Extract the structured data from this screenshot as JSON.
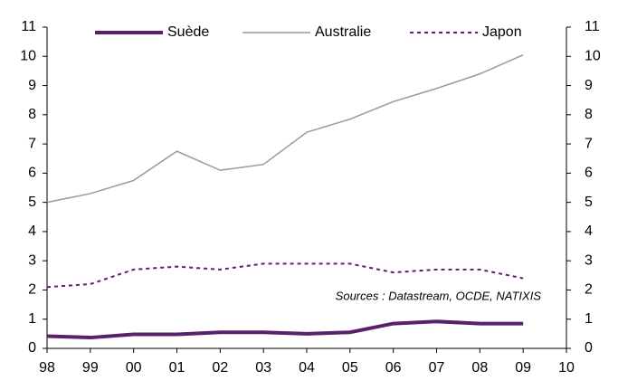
{
  "chart_data": {
    "type": "line",
    "categories": [
      "98",
      "99",
      "00",
      "01",
      "02",
      "03",
      "04",
      "05",
      "06",
      "07",
      "08",
      "09",
      "10"
    ],
    "series": [
      {
        "name": "Suède",
        "color": "#5b1f6b",
        "values": [
          0.42,
          0.37,
          0.48,
          0.48,
          0.55,
          0.55,
          0.5,
          0.55,
          0.85,
          0.92,
          0.85,
          0.85,
          null
        ]
      },
      {
        "name": "Australie",
        "color": "#999999",
        "values": [
          5.0,
          5.3,
          5.75,
          6.75,
          6.1,
          6.3,
          7.4,
          7.85,
          8.45,
          8.9,
          9.4,
          10.05,
          null
        ]
      },
      {
        "name": "Japon",
        "color": "#5b1f6b",
        "dashed": true,
        "values": [
          2.1,
          2.2,
          2.7,
          2.8,
          2.7,
          2.9,
          2.9,
          2.9,
          2.6,
          2.7,
          2.7,
          2.4,
          null
        ]
      }
    ],
    "ylim": [
      0,
      11
    ],
    "yticks": [
      0,
      1,
      2,
      3,
      4,
      5,
      6,
      7,
      8,
      9,
      10,
      11
    ],
    "y2lim": [
      0,
      11
    ],
    "y2ticks": [
      0,
      1,
      2,
      3,
      4,
      5,
      6,
      7,
      8,
      9,
      10,
      11
    ],
    "annotation": "Sources : Datastream, OCDE, NATIXIS"
  }
}
